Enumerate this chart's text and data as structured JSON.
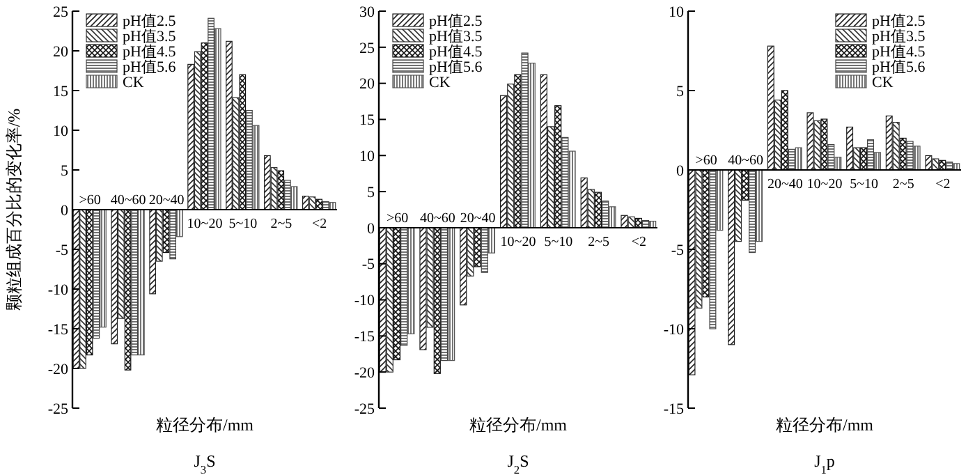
{
  "chart_data": [
    {
      "type": "bar",
      "title": "J$_{3}$S",
      "xlabel": "粒径分布/mm",
      "ylabel": "颗粒组成百分比的变化率/%",
      "categories": [
        ">60",
        "40~60",
        "20~40",
        "10~20",
        "5~10",
        "2~5",
        "<2"
      ],
      "ylim": [
        -25,
        25
      ],
      "yticks": [
        -25,
        -20,
        -15,
        -10,
        -5,
        0,
        5,
        10,
        15,
        20,
        25
      ],
      "legend": "top left",
      "tick_labels": "y",
      "series": [
        {
          "name": "pH值2.5",
          "color": "#222222",
          "values": [
            -20.0,
            -16.9,
            -10.6,
            18.3,
            21.2,
            6.8,
            1.7
          ]
        },
        {
          "name": "pH值3.5",
          "color": "#333333",
          "values": [
            -20.0,
            -13.7,
            -6.5,
            19.9,
            14.1,
            5.3,
            1.6
          ]
        },
        {
          "name": "pH值4.5",
          "color": "#111111",
          "values": [
            -18.3,
            -20.2,
            -5.4,
            21.0,
            17.0,
            4.9,
            1.3
          ]
        },
        {
          "name": "pH值5.6",
          "color": "#444444",
          "values": [
            -16.2,
            -18.3,
            -6.2,
            24.1,
            12.5,
            3.7,
            1.0
          ]
        },
        {
          "name": "CK",
          "color": "#555555",
          "values": [
            -14.8,
            -18.3,
            -3.4,
            22.8,
            10.6,
            2.9,
            0.9
          ]
        }
      ]
    },
    {
      "type": "bar",
      "title": "J$_{2}$S",
      "xlabel": "粒径分布/mm",
      "categories": [
        ">60",
        "40~60",
        "20~40",
        "10~20",
        "5~10",
        "2~5",
        "<2"
      ],
      "ylim": [
        -25,
        30
      ],
      "yticks": [
        -25,
        -20,
        -15,
        -10,
        -5,
        0,
        5,
        10,
        15,
        20,
        25,
        30
      ],
      "legend": "top left",
      "tick_labels": "y",
      "series": [
        {
          "name": "pH值2.5",
          "color": "#222222",
          "values": [
            -20.0,
            -16.9,
            -10.7,
            18.3,
            21.2,
            6.9,
            1.7
          ]
        },
        {
          "name": "pH值3.5",
          "color": "#333333",
          "values": [
            -20.0,
            -13.8,
            -6.7,
            19.9,
            14.0,
            5.3,
            1.5
          ]
        },
        {
          "name": "pH值4.5",
          "color": "#111111",
          "values": [
            -18.3,
            -20.2,
            -5.4,
            21.2,
            16.9,
            4.9,
            1.3
          ]
        },
        {
          "name": "pH值5.6",
          "color": "#444444",
          "values": [
            -16.3,
            -18.4,
            -6.2,
            24.2,
            12.5,
            3.7,
            1.0
          ]
        },
        {
          "name": "CK",
          "color": "#555555",
          "values": [
            -14.7,
            -18.4,
            -3.5,
            22.8,
            10.6,
            2.9,
            0.9
          ]
        }
      ]
    },
    {
      "type": "bar",
      "title": "J$_{1}$p",
      "xlabel": "粒径分布/mm",
      "categories": [
        ">60",
        "40~60",
        "20~40",
        "10~20",
        "5~10",
        "2~5",
        "<2"
      ],
      "ylim": [
        -15,
        10
      ],
      "yticks": [
        -15,
        -10,
        -5,
        0,
        5,
        10
      ],
      "legend": "top right",
      "tick_labels": "y",
      "series": [
        {
          "name": "pH值2.5",
          "color": "#222222",
          "values": [
            -12.9,
            -11.0,
            7.8,
            3.6,
            2.7,
            3.4,
            0.9
          ]
        },
        {
          "name": "pH值3.5",
          "color": "#333333",
          "values": [
            -8.7,
            -4.5,
            4.4,
            3.1,
            1.4,
            3.0,
            0.7
          ]
        },
        {
          "name": "pH值4.5",
          "color": "#111111",
          "values": [
            -8.0,
            -1.9,
            5.0,
            3.2,
            1.4,
            2.0,
            0.6
          ]
        },
        {
          "name": "pH值5.6",
          "color": "#444444",
          "values": [
            -10.0,
            -5.2,
            1.3,
            1.6,
            1.9,
            1.8,
            0.5
          ]
        },
        {
          "name": "CK",
          "color": "#555555",
          "values": [
            -3.8,
            -4.5,
            1.4,
            0.8,
            1.1,
            1.5,
            0.4
          ]
        }
      ]
    }
  ]
}
